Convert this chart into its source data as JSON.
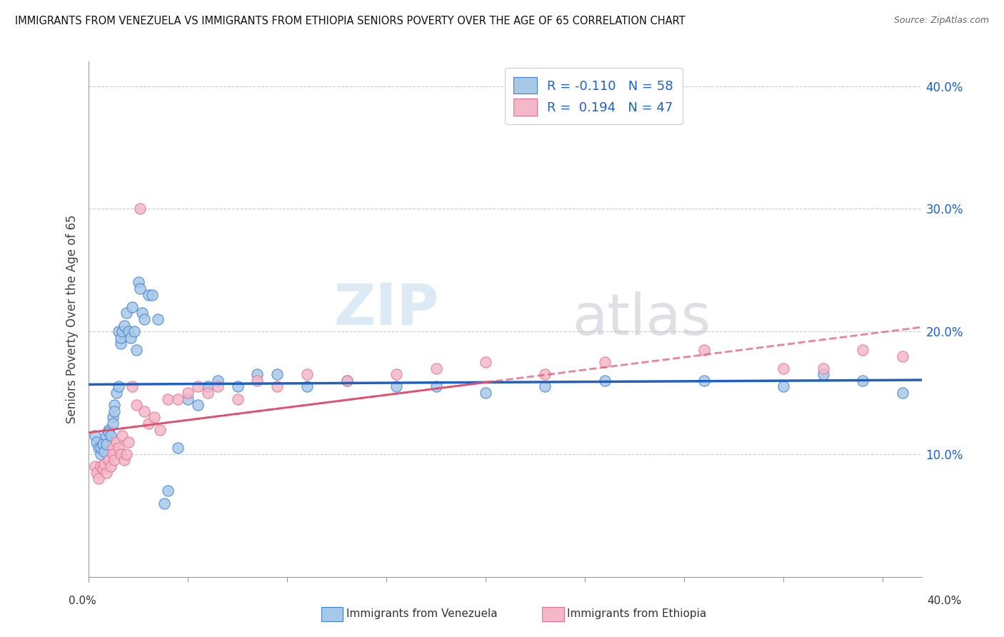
{
  "title": "IMMIGRANTS FROM VENEZUELA VS IMMIGRANTS FROM ETHIOPIA SENIORS POVERTY OVER THE AGE OF 65 CORRELATION CHART",
  "source": "Source: ZipAtlas.com",
  "ylabel": "Seniors Poverty Over the Age of 65",
  "legend_label1": "Immigrants from Venezuela",
  "legend_label2": "Immigrants from Ethiopia",
  "r1": -0.11,
  "n1": 58,
  "r2": 0.194,
  "n2": 47,
  "color1": "#a8c8e8",
  "color2": "#f4b8c8",
  "color1_line": "#2060c0",
  "color2_line": "#e05070",
  "color1_edge": "#4080d0",
  "color2_edge": "#e07090",
  "ylim": [
    0.0,
    0.42
  ],
  "xlim": [
    0.0,
    0.42
  ],
  "yticks": [
    0.1,
    0.2,
    0.3,
    0.4
  ],
  "ytick_labels": [
    "10.0%",
    "20.0%",
    "30.0%",
    "40.0%"
  ],
  "xticks": [
    0.0,
    0.05,
    0.1,
    0.15,
    0.2,
    0.25,
    0.3,
    0.35,
    0.4
  ],
  "watermark_zip": "ZIP",
  "watermark_atlas": "atlas",
  "background_color": "#ffffff",
  "venezuela_x": [
    0.003,
    0.004,
    0.005,
    0.006,
    0.006,
    0.007,
    0.008,
    0.009,
    0.009,
    0.01,
    0.01,
    0.011,
    0.012,
    0.012,
    0.013,
    0.013,
    0.014,
    0.015,
    0.015,
    0.016,
    0.016,
    0.017,
    0.018,
    0.019,
    0.02,
    0.021,
    0.022,
    0.023,
    0.024,
    0.025,
    0.026,
    0.027,
    0.028,
    0.03,
    0.032,
    0.035,
    0.038,
    0.04,
    0.045,
    0.05,
    0.055,
    0.06,
    0.065,
    0.075,
    0.085,
    0.095,
    0.11,
    0.13,
    0.155,
    0.175,
    0.2,
    0.23,
    0.26,
    0.31,
    0.35,
    0.37,
    0.39,
    0.41
  ],
  "venezuela_y": [
    0.115,
    0.11,
    0.105,
    0.1,
    0.105,
    0.108,
    0.102,
    0.115,
    0.108,
    0.12,
    0.118,
    0.115,
    0.13,
    0.125,
    0.14,
    0.135,
    0.15,
    0.155,
    0.2,
    0.19,
    0.195,
    0.2,
    0.205,
    0.215,
    0.2,
    0.195,
    0.22,
    0.2,
    0.185,
    0.24,
    0.235,
    0.215,
    0.21,
    0.23,
    0.23,
    0.21,
    0.06,
    0.07,
    0.105,
    0.145,
    0.14,
    0.155,
    0.16,
    0.155,
    0.165,
    0.165,
    0.155,
    0.16,
    0.155,
    0.155,
    0.15,
    0.155,
    0.16,
    0.16,
    0.155,
    0.165,
    0.16,
    0.15
  ],
  "ethiopia_x": [
    0.003,
    0.004,
    0.005,
    0.006,
    0.007,
    0.008,
    0.009,
    0.01,
    0.011,
    0.012,
    0.012,
    0.013,
    0.014,
    0.015,
    0.016,
    0.017,
    0.018,
    0.019,
    0.02,
    0.022,
    0.024,
    0.026,
    0.028,
    0.03,
    0.033,
    0.036,
    0.04,
    0.045,
    0.05,
    0.055,
    0.06,
    0.065,
    0.075,
    0.085,
    0.095,
    0.11,
    0.13,
    0.155,
    0.175,
    0.2,
    0.23,
    0.26,
    0.31,
    0.35,
    0.37,
    0.39,
    0.41
  ],
  "ethiopia_y": [
    0.09,
    0.085,
    0.08,
    0.09,
    0.088,
    0.092,
    0.085,
    0.095,
    0.09,
    0.105,
    0.1,
    0.095,
    0.11,
    0.105,
    0.1,
    0.115,
    0.095,
    0.1,
    0.11,
    0.155,
    0.14,
    0.3,
    0.135,
    0.125,
    0.13,
    0.12,
    0.145,
    0.145,
    0.15,
    0.155,
    0.15,
    0.155,
    0.145,
    0.16,
    0.155,
    0.165,
    0.16,
    0.165,
    0.17,
    0.175,
    0.165,
    0.175,
    0.185,
    0.17,
    0.17,
    0.185,
    0.18
  ]
}
